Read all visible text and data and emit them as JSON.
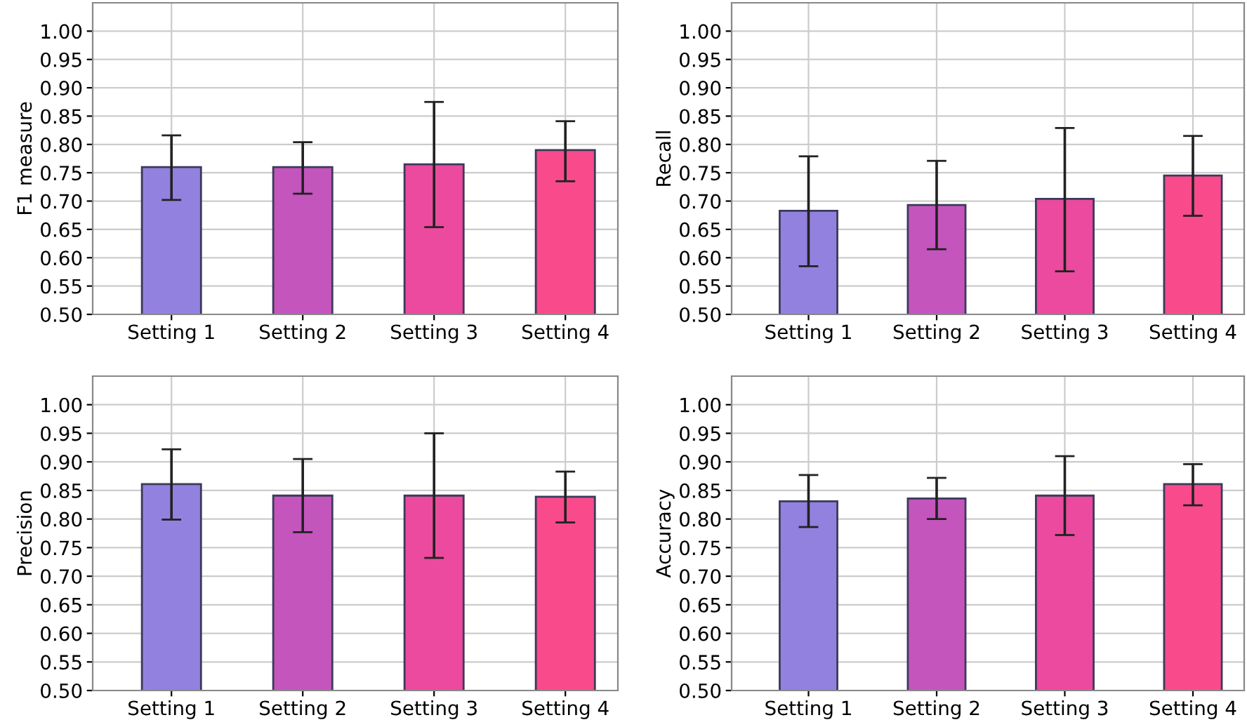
{
  "chart_data": [
    {
      "type": "bar",
      "ylabel": "F1 measure",
      "categories": [
        "Setting 1",
        "Setting 2",
        "Setting 3",
        "Setting 4"
      ],
      "colors": [
        "#9381e0",
        "#c455bd",
        "#eb4a9e",
        "#f94b8c"
      ],
      "values": [
        0.76,
        0.76,
        0.765,
        0.79
      ],
      "errors": [
        [
          0.702,
          0.816
        ],
        [
          0.713,
          0.804
        ],
        [
          0.654,
          0.875
        ],
        [
          0.735,
          0.841
        ]
      ],
      "ylim": [
        0.5,
        1.05
      ],
      "yticks": [
        {
          "value": 0.5,
          "label": "0.50"
        },
        {
          "value": 0.55,
          "label": "0.55"
        },
        {
          "value": 0.6,
          "label": "0.60"
        },
        {
          "value": 0.65,
          "label": "0.65"
        },
        {
          "value": 0.7,
          "label": "0.70"
        },
        {
          "value": 0.75,
          "label": "0.75"
        },
        {
          "value": 0.8,
          "label": "0.80"
        },
        {
          "value": 0.85,
          "label": "0.85"
        },
        {
          "value": 0.9,
          "label": "0.90"
        },
        {
          "value": 0.95,
          "label": "0.95"
        },
        {
          "value": 1.0,
          "label": "1.00"
        }
      ],
      "grid": true
    },
    {
      "type": "bar",
      "ylabel": "Recall",
      "categories": [
        "Setting 1",
        "Setting 2",
        "Setting 3",
        "Setting 4"
      ],
      "colors": [
        "#9381e0",
        "#c455bd",
        "#eb4a9e",
        "#f94b8c"
      ],
      "values": [
        0.683,
        0.693,
        0.704,
        0.745
      ],
      "errors": [
        [
          0.585,
          0.779
        ],
        [
          0.615,
          0.771
        ],
        [
          0.576,
          0.829
        ],
        [
          0.674,
          0.815
        ]
      ],
      "ylim": [
        0.5,
        1.05
      ],
      "yticks": [
        {
          "value": 0.5,
          "label": "0.50"
        },
        {
          "value": 0.55,
          "label": "0.55"
        },
        {
          "value": 0.6,
          "label": "0.60"
        },
        {
          "value": 0.65,
          "label": "0.65"
        },
        {
          "value": 0.7,
          "label": "0.70"
        },
        {
          "value": 0.75,
          "label": "0.75"
        },
        {
          "value": 0.8,
          "label": "0.80"
        },
        {
          "value": 0.85,
          "label": "0.85"
        },
        {
          "value": 0.9,
          "label": "0.90"
        },
        {
          "value": 0.95,
          "label": "0.95"
        },
        {
          "value": 1.0,
          "label": "1.00"
        }
      ],
      "grid": true
    },
    {
      "type": "bar",
      "ylabel": "Precision",
      "categories": [
        "Setting 1",
        "Setting 2",
        "Setting 3",
        "Setting 4"
      ],
      "colors": [
        "#9381e0",
        "#c455bd",
        "#eb4a9e",
        "#f94b8c"
      ],
      "values": [
        0.861,
        0.841,
        0.841,
        0.839
      ],
      "errors": [
        [
          0.799,
          0.922
        ],
        [
          0.777,
          0.905
        ],
        [
          0.732,
          0.95
        ],
        [
          0.794,
          0.883
        ]
      ],
      "ylim": [
        0.5,
        1.05
      ],
      "yticks": [
        {
          "value": 0.5,
          "label": "0.50"
        },
        {
          "value": 0.55,
          "label": "0.55"
        },
        {
          "value": 0.6,
          "label": "0.60"
        },
        {
          "value": 0.65,
          "label": "0.65"
        },
        {
          "value": 0.7,
          "label": "0.70"
        },
        {
          "value": 0.75,
          "label": "0.75"
        },
        {
          "value": 0.8,
          "label": "0.80"
        },
        {
          "value": 0.85,
          "label": "0.85"
        },
        {
          "value": 0.9,
          "label": "0.90"
        },
        {
          "value": 0.95,
          "label": "0.95"
        },
        {
          "value": 1.0,
          "label": "1.00"
        }
      ],
      "grid": true
    },
    {
      "type": "bar",
      "ylabel": "Accuracy",
      "categories": [
        "Setting 1",
        "Setting 2",
        "Setting 3",
        "Setting 4"
      ],
      "colors": [
        "#9381e0",
        "#c455bd",
        "#eb4a9e",
        "#f94b8c"
      ],
      "values": [
        0.831,
        0.836,
        0.841,
        0.861
      ],
      "errors": [
        [
          0.786,
          0.877
        ],
        [
          0.8,
          0.872
        ],
        [
          0.772,
          0.91
        ],
        [
          0.824,
          0.896
        ]
      ],
      "ylim": [
        0.5,
        1.05
      ],
      "yticks": [
        {
          "value": 0.5,
          "label": "0.50"
        },
        {
          "value": 0.55,
          "label": "0.55"
        },
        {
          "value": 0.6,
          "label": "0.60"
        },
        {
          "value": 0.65,
          "label": "0.65"
        },
        {
          "value": 0.7,
          "label": "0.70"
        },
        {
          "value": 0.75,
          "label": "0.75"
        },
        {
          "value": 0.8,
          "label": "0.80"
        },
        {
          "value": 0.85,
          "label": "0.85"
        },
        {
          "value": 0.9,
          "label": "0.90"
        },
        {
          "value": 0.95,
          "label": "0.95"
        },
        {
          "value": 1.0,
          "label": "1.00"
        }
      ],
      "grid": true
    }
  ]
}
